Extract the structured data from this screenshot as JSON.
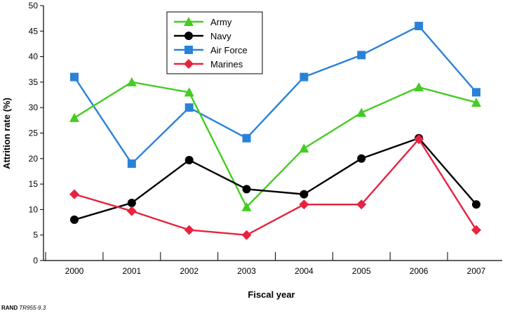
{
  "credit": {
    "org": "RAND",
    "code": "TR955-9.3"
  },
  "chart_data": {
    "type": "line",
    "title": "",
    "xlabel": "Fiscal year",
    "ylabel": "Attrition rate (%)",
    "categories": [
      "2000",
      "2001",
      "2002",
      "2003",
      "2004",
      "2005",
      "2006",
      "2007"
    ],
    "ylim": [
      0,
      50
    ],
    "yticks": [
      0,
      5,
      10,
      15,
      20,
      25,
      30,
      35,
      40,
      45,
      50
    ],
    "grid": false,
    "legend_position": "top-center",
    "series": [
      {
        "name": "Army",
        "color": "#44cc22",
        "marker": "triangle",
        "values": [
          28,
          35,
          33,
          10.5,
          22,
          29,
          34,
          31
        ]
      },
      {
        "name": "Navy",
        "color": "#000000",
        "marker": "circle",
        "values": [
          8,
          11.3,
          19.7,
          14,
          13,
          20,
          24,
          11
        ]
      },
      {
        "name": "Air Force",
        "color": "#2a82d8",
        "marker": "square",
        "values": [
          36,
          19,
          30,
          24,
          36,
          40.3,
          46,
          33
        ]
      },
      {
        "name": "Marines",
        "color": "#e8233f",
        "marker": "diamond",
        "values": [
          13,
          9.7,
          6,
          5,
          11,
          11,
          23.8,
          6
        ]
      }
    ]
  }
}
